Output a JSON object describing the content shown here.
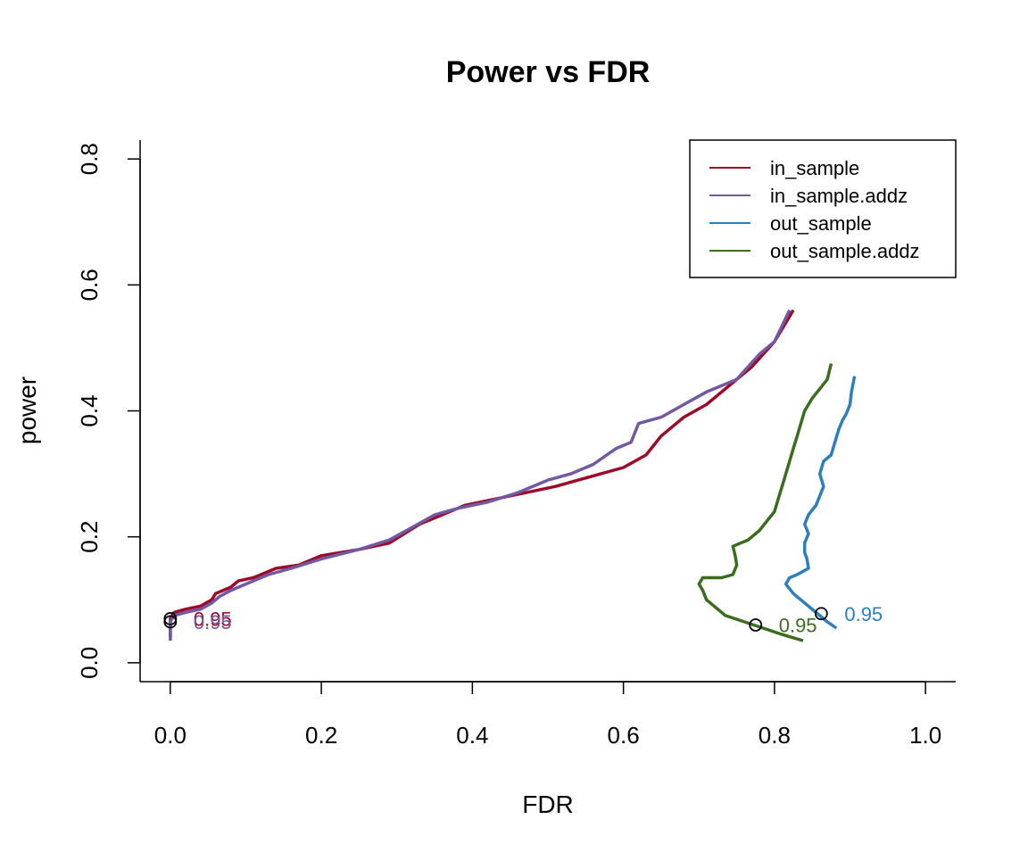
{
  "chart_data": {
    "type": "line",
    "title": "Power vs FDR",
    "xlabel": "FDR",
    "ylabel": "power",
    "xlim": [
      -0.04,
      1.04
    ],
    "ylim": [
      -0.03,
      0.83
    ],
    "xticks": [
      "0.0",
      "0.2",
      "0.4",
      "0.6",
      "0.8",
      "1.0"
    ],
    "yticks": [
      "0.0",
      "0.2",
      "0.4",
      "0.6",
      "0.8"
    ],
    "grid": false,
    "legend_position": "top-right",
    "series": [
      {
        "name": "in_sample",
        "color": "#9B0A29",
        "points": [
          [
            0.0,
            0.04
          ],
          [
            0.0,
            0.07
          ],
          [
            0.005,
            0.08
          ],
          [
            0.02,
            0.085
          ],
          [
            0.04,
            0.09
          ],
          [
            0.055,
            0.1
          ],
          [
            0.06,
            0.11
          ],
          [
            0.08,
            0.12
          ],
          [
            0.09,
            0.13
          ],
          [
            0.11,
            0.135
          ],
          [
            0.14,
            0.15
          ],
          [
            0.17,
            0.155
          ],
          [
            0.2,
            0.17
          ],
          [
            0.25,
            0.18
          ],
          [
            0.29,
            0.19
          ],
          [
            0.33,
            0.22
          ],
          [
            0.36,
            0.235
          ],
          [
            0.39,
            0.25
          ],
          [
            0.43,
            0.26
          ],
          [
            0.47,
            0.27
          ],
          [
            0.51,
            0.28
          ],
          [
            0.54,
            0.29
          ],
          [
            0.57,
            0.3
          ],
          [
            0.6,
            0.31
          ],
          [
            0.63,
            0.33
          ],
          [
            0.65,
            0.36
          ],
          [
            0.68,
            0.39
          ],
          [
            0.71,
            0.41
          ],
          [
            0.74,
            0.44
          ],
          [
            0.77,
            0.47
          ],
          [
            0.8,
            0.51
          ],
          [
            0.815,
            0.54
          ],
          [
            0.825,
            0.56
          ]
        ],
        "marker": [
          0.0,
          0.07
        ],
        "marker_label": "0.95"
      },
      {
        "name": "in_sample.addz",
        "color": "#7259A1",
        "points": [
          [
            0.0,
            0.035
          ],
          [
            0.0,
            0.065
          ],
          [
            0.005,
            0.075
          ],
          [
            0.02,
            0.08
          ],
          [
            0.04,
            0.085
          ],
          [
            0.055,
            0.095
          ],
          [
            0.065,
            0.105
          ],
          [
            0.08,
            0.115
          ],
          [
            0.1,
            0.125
          ],
          [
            0.13,
            0.14
          ],
          [
            0.16,
            0.15
          ],
          [
            0.2,
            0.165
          ],
          [
            0.25,
            0.18
          ],
          [
            0.29,
            0.195
          ],
          [
            0.32,
            0.215
          ],
          [
            0.35,
            0.235
          ],
          [
            0.38,
            0.245
          ],
          [
            0.42,
            0.255
          ],
          [
            0.46,
            0.27
          ],
          [
            0.5,
            0.29
          ],
          [
            0.53,
            0.3
          ],
          [
            0.56,
            0.315
          ],
          [
            0.59,
            0.34
          ],
          [
            0.61,
            0.35
          ],
          [
            0.62,
            0.38
          ],
          [
            0.65,
            0.39
          ],
          [
            0.68,
            0.41
          ],
          [
            0.71,
            0.43
          ],
          [
            0.75,
            0.45
          ],
          [
            0.78,
            0.49
          ],
          [
            0.8,
            0.51
          ],
          [
            0.82,
            0.56
          ]
        ],
        "marker": [
          0.0,
          0.065
        ],
        "marker_label": "0.95"
      },
      {
        "name": "out_sample",
        "color": "#2E7EBB",
        "points": [
          [
            0.882,
            0.055
          ],
          [
            0.87,
            0.065
          ],
          [
            0.855,
            0.08
          ],
          [
            0.84,
            0.095
          ],
          [
            0.825,
            0.11
          ],
          [
            0.815,
            0.125
          ],
          [
            0.82,
            0.135
          ],
          [
            0.83,
            0.14
          ],
          [
            0.845,
            0.15
          ],
          [
            0.843,
            0.165
          ],
          [
            0.84,
            0.175
          ],
          [
            0.84,
            0.19
          ],
          [
            0.845,
            0.205
          ],
          [
            0.84,
            0.22
          ],
          [
            0.845,
            0.235
          ],
          [
            0.855,
            0.25
          ],
          [
            0.86,
            0.265
          ],
          [
            0.865,
            0.28
          ],
          [
            0.86,
            0.3
          ],
          [
            0.865,
            0.32
          ],
          [
            0.875,
            0.33
          ],
          [
            0.88,
            0.35
          ],
          [
            0.885,
            0.37
          ],
          [
            0.89,
            0.385
          ],
          [
            0.895,
            0.395
          ],
          [
            0.9,
            0.41
          ],
          [
            0.902,
            0.43
          ],
          [
            0.906,
            0.455
          ]
        ],
        "marker": [
          0.862,
          0.078
        ],
        "marker_label": "0.95"
      },
      {
        "name": "out_sample.addz",
        "color": "#3B6C1F",
        "points": [
          [
            0.838,
            0.035
          ],
          [
            0.81,
            0.045
          ],
          [
            0.785,
            0.055
          ],
          [
            0.76,
            0.065
          ],
          [
            0.735,
            0.075
          ],
          [
            0.72,
            0.09
          ],
          [
            0.71,
            0.1
          ],
          [
            0.705,
            0.115
          ],
          [
            0.7,
            0.125
          ],
          [
            0.705,
            0.135
          ],
          [
            0.73,
            0.135
          ],
          [
            0.745,
            0.14
          ],
          [
            0.75,
            0.155
          ],
          [
            0.748,
            0.17
          ],
          [
            0.745,
            0.185
          ],
          [
            0.755,
            0.19
          ],
          [
            0.765,
            0.195
          ],
          [
            0.78,
            0.21
          ],
          [
            0.79,
            0.225
          ],
          [
            0.8,
            0.24
          ],
          [
            0.805,
            0.26
          ],
          [
            0.81,
            0.28
          ],
          [
            0.815,
            0.3
          ],
          [
            0.82,
            0.32
          ],
          [
            0.825,
            0.34
          ],
          [
            0.83,
            0.36
          ],
          [
            0.835,
            0.38
          ],
          [
            0.84,
            0.4
          ],
          [
            0.85,
            0.42
          ],
          [
            0.86,
            0.435
          ],
          [
            0.87,
            0.45
          ],
          [
            0.875,
            0.475
          ]
        ],
        "marker": [
          0.775,
          0.06
        ],
        "marker_label": "0.95"
      }
    ]
  }
}
